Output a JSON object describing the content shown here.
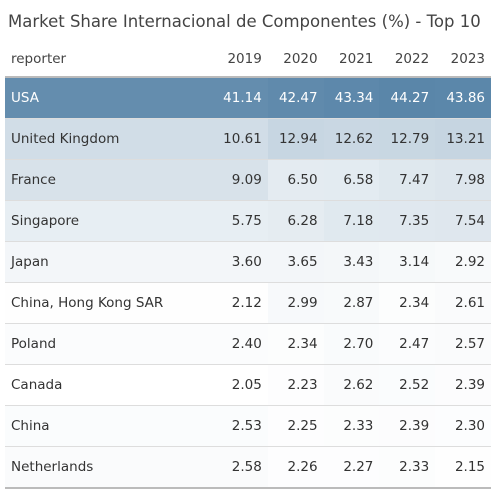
{
  "title": "Market Share Internacional de Componentes (%) - Top 10",
  "columns": [
    "reporter",
    "2019",
    "2020",
    "2021",
    "2022",
    "2023"
  ],
  "rows": [
    [
      "USA",
      "41.14",
      "42.47",
      "43.34",
      "44.27",
      "43.86"
    ],
    [
      "United Kingdom",
      "10.61",
      "12.94",
      "12.62",
      "12.79",
      "13.21"
    ],
    [
      "France",
      "9.09",
      "6.50",
      "6.58",
      "7.47",
      "7.98"
    ],
    [
      "Singapore",
      "5.75",
      "6.28",
      "7.18",
      "7.35",
      "7.54"
    ],
    [
      "Japan",
      "3.60",
      "3.65",
      "3.43",
      "3.14",
      "2.92"
    ],
    [
      "China, Hong Kong SAR",
      "2.12",
      "2.99",
      "2.87",
      "2.34",
      "2.61"
    ],
    [
      "Poland",
      "2.40",
      "2.34",
      "2.70",
      "2.47",
      "2.57"
    ],
    [
      "Canada",
      "2.05",
      "2.23",
      "2.62",
      "2.52",
      "2.39"
    ],
    [
      "China",
      "2.53",
      "2.25",
      "2.33",
      "2.39",
      "2.30"
    ],
    [
      "Netherlands",
      "2.58",
      "2.26",
      "2.27",
      "2.33",
      "2.15"
    ]
  ]
}
